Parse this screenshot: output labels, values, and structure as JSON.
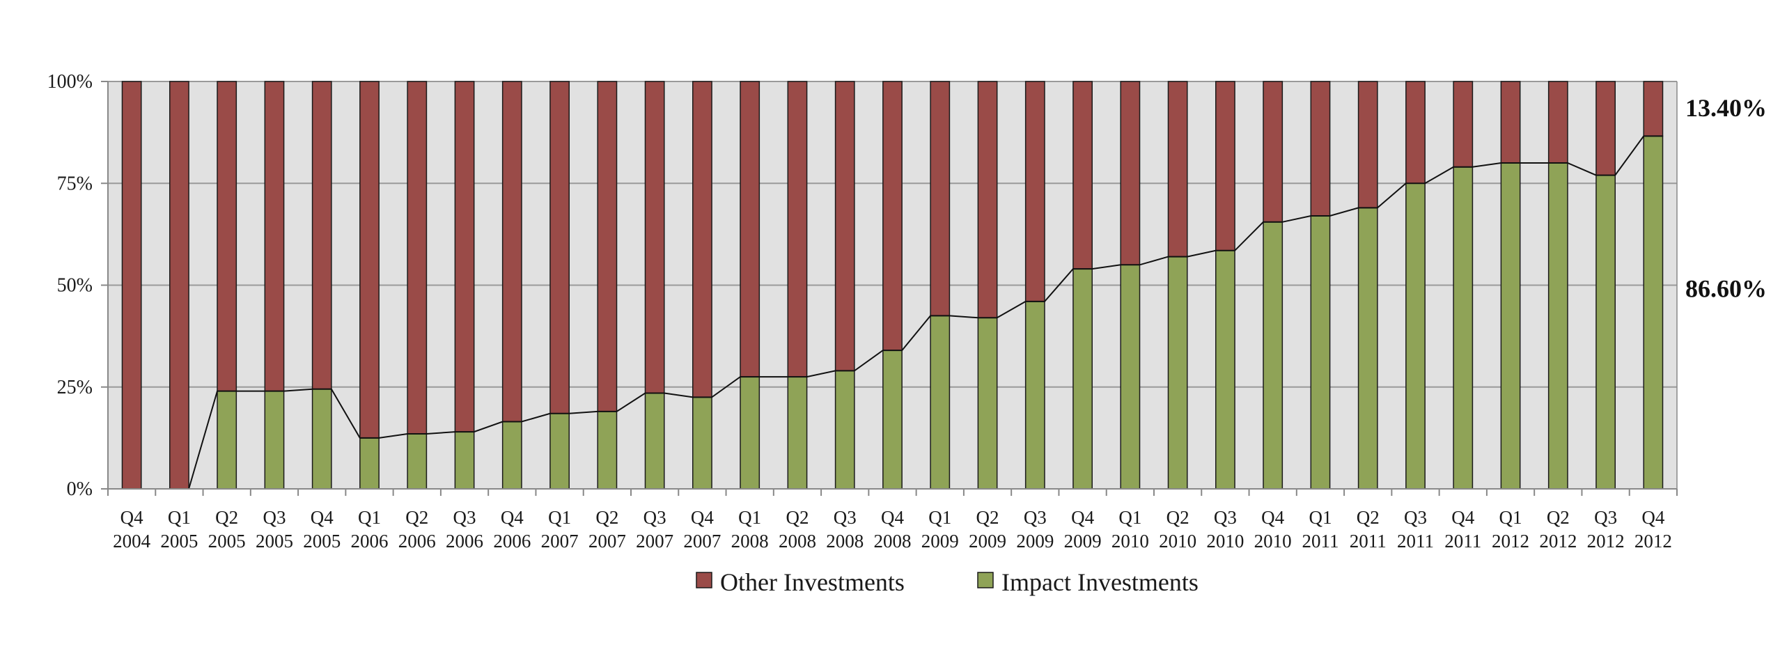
{
  "chart_data": {
    "type": "bar",
    "stacked": true,
    "percent_stacked": true,
    "title": "",
    "xlabel": "",
    "ylabel": "",
    "ylim": [
      0,
      100
    ],
    "yticks": [
      "0%",
      "25%",
      "50%",
      "75%",
      "100%"
    ],
    "ytick_values": [
      0,
      25,
      50,
      75,
      100
    ],
    "grid": true,
    "legend_position": "bottom",
    "categories": [
      [
        "Q4",
        "2004"
      ],
      [
        "Q1",
        "2005"
      ],
      [
        "Q2",
        "2005"
      ],
      [
        "Q3",
        "2005"
      ],
      [
        "Q4",
        "2005"
      ],
      [
        "Q1",
        "2006"
      ],
      [
        "Q2",
        "2006"
      ],
      [
        "Q3",
        "2006"
      ],
      [
        "Q4",
        "2006"
      ],
      [
        "Q1",
        "2007"
      ],
      [
        "Q2",
        "2007"
      ],
      [
        "Q3",
        "2007"
      ],
      [
        "Q4",
        "2007"
      ],
      [
        "Q1",
        "2008"
      ],
      [
        "Q2",
        "2008"
      ],
      [
        "Q3",
        "2008"
      ],
      [
        "Q4",
        "2008"
      ],
      [
        "Q1",
        "2009"
      ],
      [
        "Q2",
        "2009"
      ],
      [
        "Q3",
        "2009"
      ],
      [
        "Q4",
        "2009"
      ],
      [
        "Q1",
        "2010"
      ],
      [
        "Q2",
        "2010"
      ],
      [
        "Q3",
        "2010"
      ],
      [
        "Q4",
        "2010"
      ],
      [
        "Q1",
        "2011"
      ],
      [
        "Q2",
        "2011"
      ],
      [
        "Q3",
        "2011"
      ],
      [
        "Q4",
        "2011"
      ],
      [
        "Q1",
        "2012"
      ],
      [
        "Q2",
        "2012"
      ],
      [
        "Q3",
        "2012"
      ],
      [
        "Q4",
        "2012"
      ]
    ],
    "series": [
      {
        "name": "Impact Investments",
        "color": "#8fa357",
        "values": [
          0,
          0,
          24,
          24,
          24.5,
          12.5,
          13.5,
          14,
          16.5,
          18.5,
          19,
          23.5,
          22.5,
          27.5,
          27.5,
          29,
          34,
          42.5,
          42,
          46,
          54,
          55,
          57,
          58.5,
          65.5,
          67,
          69,
          75,
          79,
          80,
          80,
          77,
          86.6
        ]
      },
      {
        "name": "Other Investments",
        "color": "#9a4b48",
        "values": [
          100,
          100,
          76,
          76,
          75.5,
          87.5,
          86.5,
          86,
          83.5,
          81.5,
          81,
          76.5,
          77.5,
          72.5,
          72.5,
          71,
          66,
          57.5,
          58,
          54,
          46,
          45,
          43,
          41.5,
          34.5,
          33,
          31,
          25,
          21,
          20,
          20,
          23,
          13.4
        ]
      }
    ],
    "trend_line": "Impact Investments",
    "annotations": [
      {
        "text": "13.40%",
        "series": "Other Investments",
        "category_index": 32
      },
      {
        "text": "86.60%",
        "series": "Impact Investments",
        "category_index": 32
      }
    ],
    "colors": {
      "plot_background": "#e1e1e1",
      "gridline": "#9a9a9a",
      "axis": "#888888",
      "trend_line": "#111111"
    }
  }
}
